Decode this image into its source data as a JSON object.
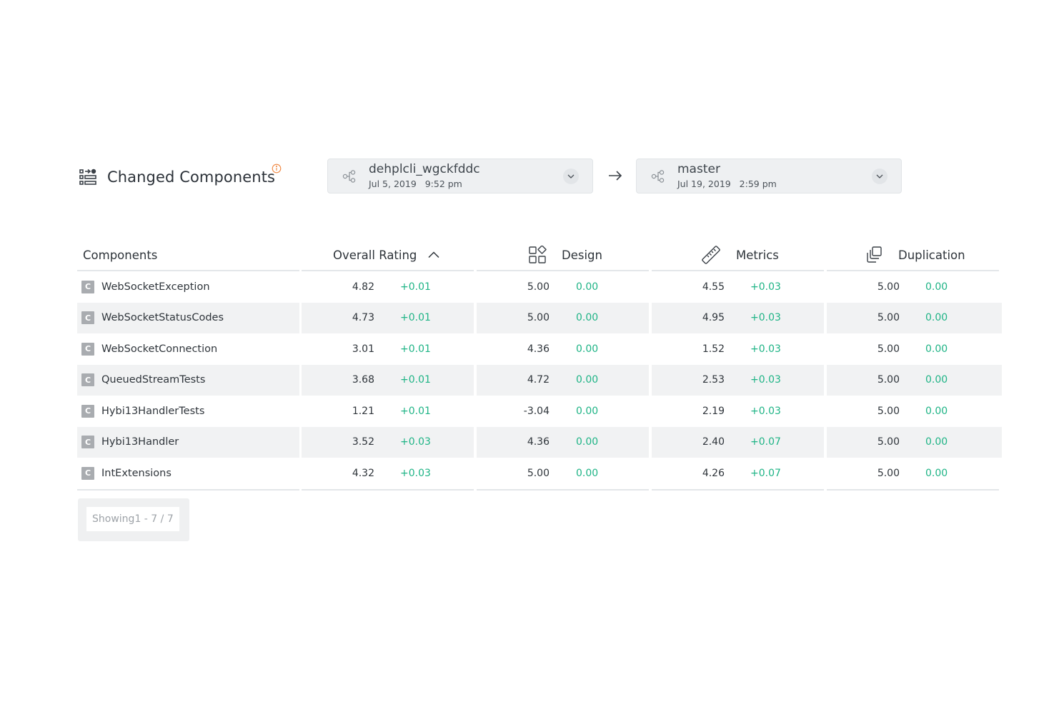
{
  "header": {
    "title": "Changed Components",
    "from_branch": {
      "name": "dehplcli_wgckfddc",
      "date": "Jul 5, 2019",
      "time": "9:52 pm"
    },
    "to_branch": {
      "name": "master",
      "date": "Jul 19, 2019",
      "time": "2:59 pm"
    }
  },
  "table": {
    "columns": {
      "components": "Components",
      "overall": "Overall Rating",
      "design": "Design",
      "metrics": "Metrics",
      "duplication": "Duplication"
    },
    "rows": [
      {
        "badge": "C",
        "name": "WebSocketException",
        "overall": "4.82",
        "overall_delta": "+0.01",
        "design": "5.00",
        "design_delta": "0.00",
        "metrics": "4.55",
        "metrics_delta": "+0.03",
        "duplication": "5.00",
        "duplication_delta": "0.00"
      },
      {
        "badge": "C",
        "name": "WebSocketStatusCodes",
        "overall": "4.73",
        "overall_delta": "+0.01",
        "design": "5.00",
        "design_delta": "0.00",
        "metrics": "4.95",
        "metrics_delta": "+0.03",
        "duplication": "5.00",
        "duplication_delta": "0.00"
      },
      {
        "badge": "C",
        "name": "WebSocketConnection",
        "overall": "3.01",
        "overall_delta": "+0.01",
        "design": "4.36",
        "design_delta": "0.00",
        "metrics": "1.52",
        "metrics_delta": "+0.03",
        "duplication": "5.00",
        "duplication_delta": "0.00"
      },
      {
        "badge": "C",
        "name": "QueuedStreamTests",
        "overall": "3.68",
        "overall_delta": "+0.01",
        "design": "4.72",
        "design_delta": "0.00",
        "metrics": "2.53",
        "metrics_delta": "+0.03",
        "duplication": "5.00",
        "duplication_delta": "0.00"
      },
      {
        "badge": "C",
        "name": "Hybi13HandlerTests",
        "overall": "1.21",
        "overall_delta": "+0.01",
        "design": "-3.04",
        "design_delta": "0.00",
        "metrics": "2.19",
        "metrics_delta": "+0.03",
        "duplication": "5.00",
        "duplication_delta": "0.00"
      },
      {
        "badge": "C",
        "name": "Hybi13Handler",
        "overall": "3.52",
        "overall_delta": "+0.03",
        "design": "4.36",
        "design_delta": "0.00",
        "metrics": "2.40",
        "metrics_delta": "+0.07",
        "duplication": "5.00",
        "duplication_delta": "0.00"
      },
      {
        "badge": "C",
        "name": "IntExtensions",
        "overall": "4.32",
        "overall_delta": "+0.03",
        "design": "5.00",
        "design_delta": "0.00",
        "metrics": "4.26",
        "metrics_delta": "+0.07",
        "duplication": "5.00",
        "duplication_delta": "0.00"
      }
    ]
  },
  "footer": {
    "showing_label": "Showing",
    "range": "1 - 7 / 7"
  },
  "colors": {
    "positive": "#1fb486",
    "info": "#f0843c",
    "stripe": "#f1f2f3"
  },
  "icons": [
    "components-list-icon",
    "info-icon",
    "branch-icon",
    "chevron-down-icon",
    "arrow-right-icon",
    "sort-up-icon",
    "design-icon",
    "ruler-icon",
    "duplication-icon"
  ]
}
